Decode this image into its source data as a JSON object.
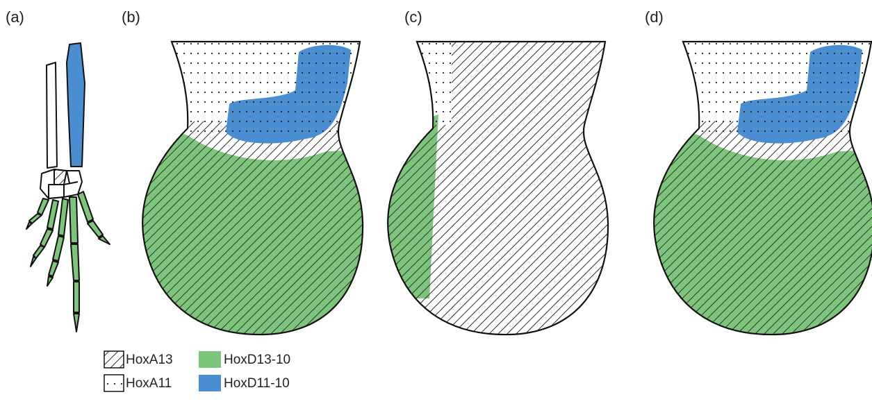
{
  "panels": [
    {
      "label": "(a)"
    },
    {
      "label": "(b)"
    },
    {
      "label": "(c)"
    },
    {
      "label": "(d)"
    }
  ],
  "legend": [
    {
      "label": "HoxA13"
    },
    {
      "label": "HoxA11"
    },
    {
      "label": "HoxD13-10"
    },
    {
      "label": "HoxD11-10"
    }
  ]
}
